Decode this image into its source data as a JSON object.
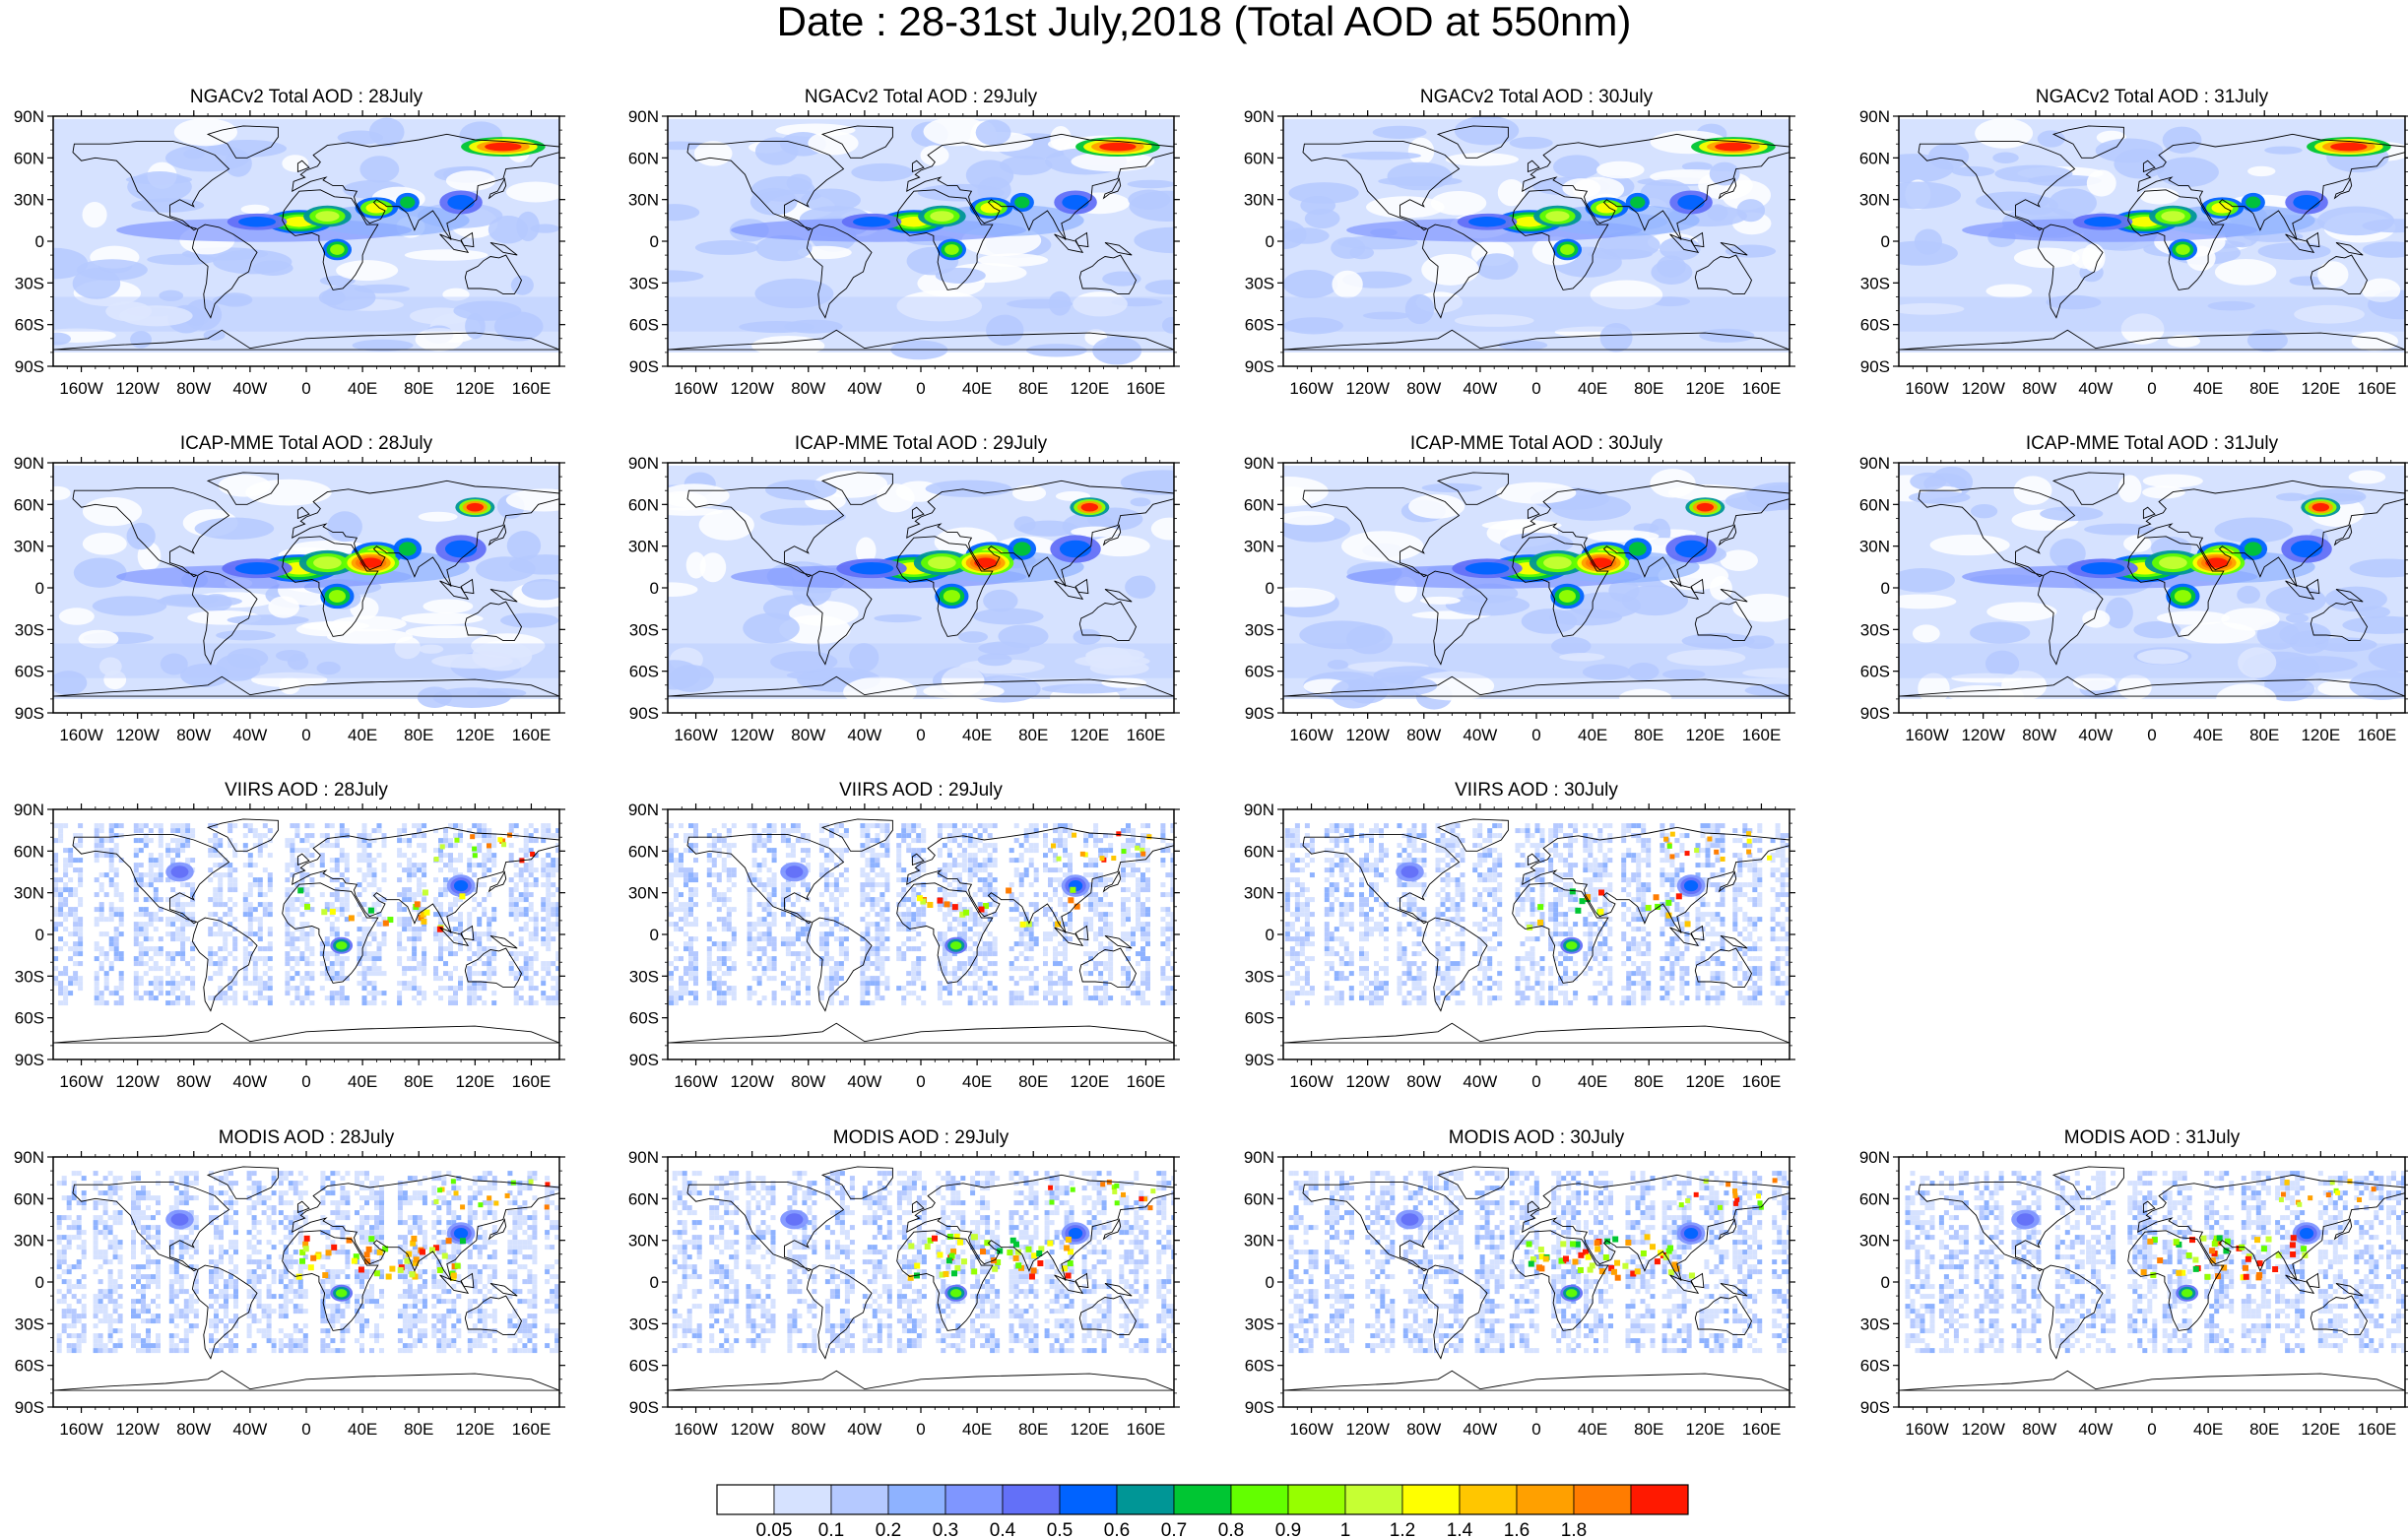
{
  "title": "Date : 28-31st July,2018 (Total AOD at 550nm)",
  "rows": [
    {
      "name": "NGACv2 Total AOD",
      "panels": [
        {
          "title": "NGACv2 Total AOD : 28July",
          "present": true
        },
        {
          "title": "NGACv2 Total AOD : 29July",
          "present": true
        },
        {
          "title": "NGACv2 Total AOD : 30July",
          "present": true
        },
        {
          "title": "NGACv2 Total AOD : 31July",
          "present": true
        }
      ]
    },
    {
      "name": "ICAP-MME Total AOD",
      "panels": [
        {
          "title": "ICAP-MME Total AOD : 28July",
          "present": true
        },
        {
          "title": "ICAP-MME Total AOD : 29July",
          "present": true
        },
        {
          "title": "ICAP-MME Total AOD : 30July",
          "present": true
        },
        {
          "title": "ICAP-MME Total AOD : 31July",
          "present": true
        }
      ]
    },
    {
      "name": "VIIRS AOD",
      "panels": [
        {
          "title": "VIIRS AOD : 28July",
          "present": true
        },
        {
          "title": "VIIRS AOD : 29July",
          "present": true
        },
        {
          "title": "VIIRS AOD : 30July",
          "present": true
        },
        {
          "title": "",
          "present": false
        }
      ]
    },
    {
      "name": "MODIS AOD",
      "panels": [
        {
          "title": "MODIS AOD : 28July",
          "present": true
        },
        {
          "title": "MODIS AOD : 29July",
          "present": true
        },
        {
          "title": "MODIS AOD : 30July",
          "present": true
        },
        {
          "title": "MODIS AOD : 31July",
          "present": true
        }
      ]
    }
  ],
  "lat_labels": [
    "90N",
    "60N",
    "30N",
    "0",
    "30S",
    "60S",
    "90S"
  ],
  "lon_labels": [
    "160W",
    "120W",
    "80W",
    "40W",
    "0",
    "40E",
    "80E",
    "120E",
    "160E"
  ],
  "colorbar": {
    "colors": [
      "#ffffff",
      "#d6e2ff",
      "#b5c9ff",
      "#8eb2ff",
      "#7f96ff",
      "#6370f8",
      "#0063ff",
      "#009696",
      "#00c633",
      "#63ff00",
      "#96ff00",
      "#c6ff33",
      "#ffff00",
      "#ffc600",
      "#ffa000",
      "#ff7c00",
      "#ff1900"
    ],
    "labels": [
      "0.05",
      "0.1",
      "0.2",
      "0.3",
      "0.4",
      "0.5",
      "0.6",
      "0.7",
      "0.8",
      "0.9",
      "1",
      "1.2",
      "1.4",
      "1.6",
      "1.8"
    ]
  }
}
